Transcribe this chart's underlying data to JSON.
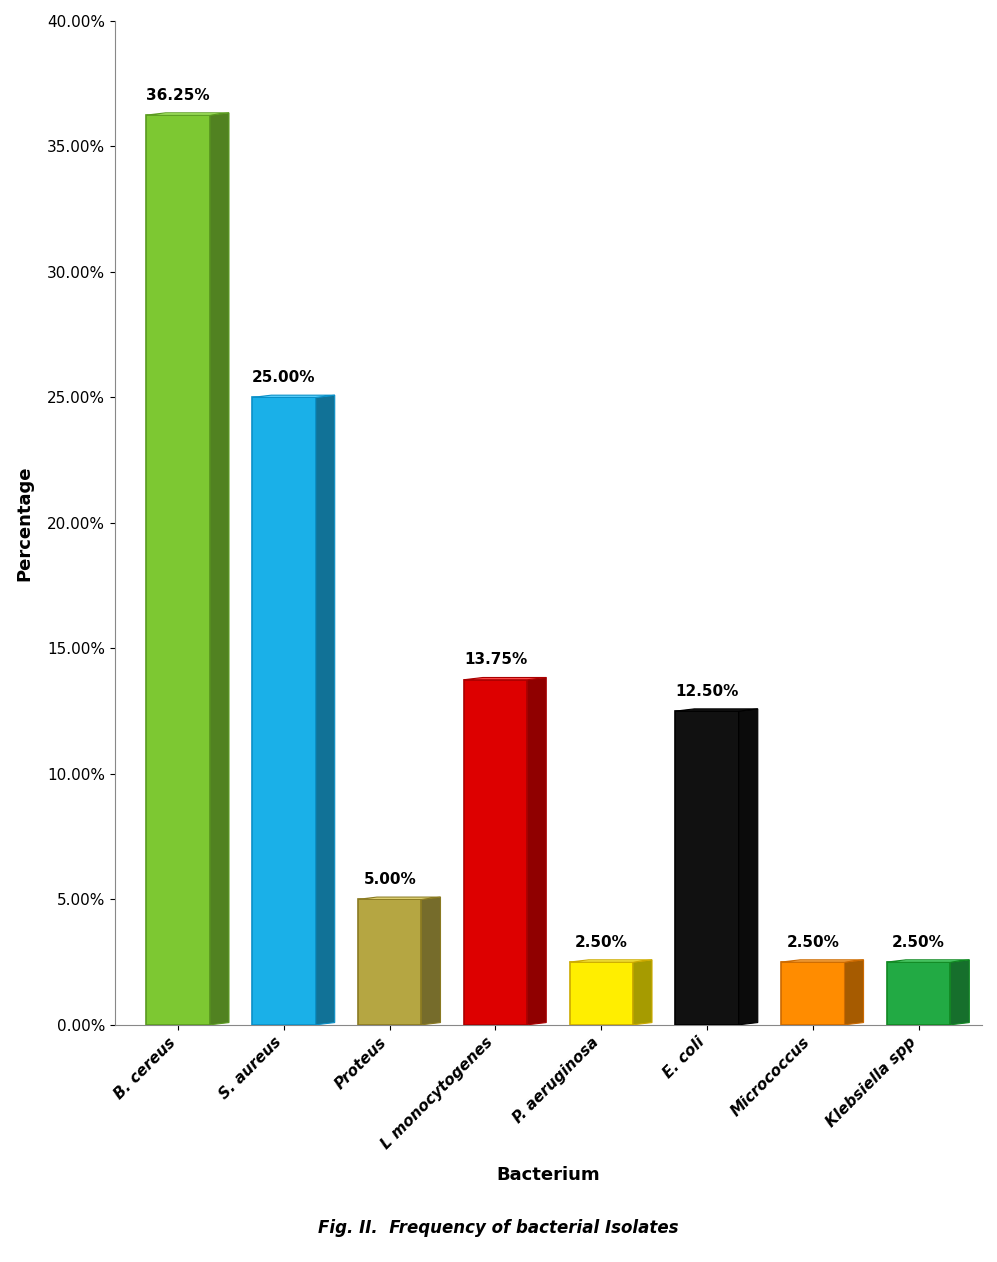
{
  "categories": [
    "B. cereus",
    "S. aureus",
    "Proteus",
    "L monocytogenes",
    "P. aeruginosa",
    "E. coli",
    "Micrococcus",
    "Klebsiella spp"
  ],
  "values": [
    36.25,
    25.0,
    5.0,
    13.75,
    2.5,
    12.5,
    2.5,
    2.5
  ],
  "bar_colors": [
    "#7dc832",
    "#1ab0e8",
    "#b5a642",
    "#dd0000",
    "#ffee00",
    "#111111",
    "#ff8c00",
    "#22aa44"
  ],
  "bar_edge_colors": [
    "#5a9a20",
    "#0a90c8",
    "#8a7a22",
    "#aa0000",
    "#ccaa00",
    "#000000",
    "#cc6a00",
    "#118822"
  ],
  "value_labels": [
    "36.25%",
    "25.00%",
    "5.00%",
    "13.75%",
    "2.50%",
    "12.50%",
    "2.50%",
    "2.50%"
  ],
  "xlabel": "Bacterium",
  "ylabel": "Percentage",
  "ylim": [
    0,
    40
  ],
  "yticks": [
    0,
    5,
    10,
    15,
    20,
    25,
    30,
    35,
    40
  ],
  "ytick_labels": [
    "0.00%",
    "5.00%",
    "10.00%",
    "15.00%",
    "20.00%",
    "25.00%",
    "30.00%",
    "35.00%",
    "40.00%"
  ],
  "caption": "Fig. II.  Frequency of bacterial Isolates",
  "background_color": "#ffffff",
  "bar_width": 0.6,
  "title_fontsize": 13,
  "label_fontsize": 13,
  "tick_fontsize": 11,
  "value_fontsize": 11,
  "caption_fontsize": 12
}
